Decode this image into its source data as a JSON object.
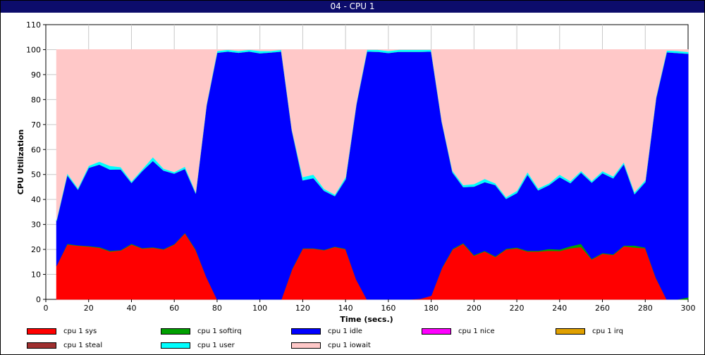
{
  "window": {
    "title": "04 - CPU 1"
  },
  "colors": {
    "sys": "#ff0000",
    "softirq": "#00a000",
    "idle": "#0000ff",
    "nice": "#ff00ff",
    "irq": "#e0a000",
    "steal": "#a03030",
    "user": "#00ffff",
    "iowait": "#ffc8c8"
  },
  "chart_data": {
    "type": "area",
    "stacked": true,
    "xlabel": "Time (secs.)",
    "ylabel": "CPU Utilization",
    "xlim": [
      0,
      300
    ],
    "ylim": [
      0,
      110
    ],
    "xticks": [
      0,
      20,
      40,
      60,
      80,
      100,
      120,
      140,
      160,
      180,
      200,
      220,
      240,
      260,
      280,
      300
    ],
    "yticks": [
      0,
      10,
      20,
      30,
      40,
      50,
      60,
      70,
      80,
      90,
      100,
      110
    ],
    "grid": true,
    "legend_position": "bottom",
    "x": [
      5,
      10,
      15,
      20,
      25,
      30,
      35,
      40,
      45,
      50,
      55,
      60,
      65,
      70,
      75,
      80,
      85,
      90,
      95,
      100,
      105,
      110,
      115,
      120,
      125,
      130,
      135,
      140,
      145,
      150,
      155,
      160,
      165,
      170,
      175,
      180,
      185,
      190,
      195,
      200,
      205,
      210,
      215,
      220,
      225,
      230,
      235,
      240,
      245,
      250,
      255,
      260,
      265,
      270,
      275,
      280,
      285,
      290,
      295,
      300
    ],
    "series": [
      {
        "name": "cpu 1 sys",
        "key": "sys",
        "values": [
          13.5,
          22,
          21.5,
          21.2,
          20.7,
          19.2,
          19.6,
          22,
          20.4,
          20.7,
          20,
          22,
          26.5,
          19.8,
          9,
          0,
          0,
          0,
          0,
          0,
          0,
          0,
          12,
          20.3,
          20.3,
          19.7,
          21,
          20.1,
          8,
          0,
          0,
          0,
          0,
          0,
          0.3,
          1.5,
          12.5,
          20,
          22.3,
          17.5,
          19.2,
          17,
          20,
          20.5,
          19.2,
          19.2,
          19.5,
          19.4,
          20.5,
          21,
          16,
          18.3,
          17.8,
          21.3,
          20.8,
          20.5,
          8.5,
          0,
          0,
          0
        ]
      },
      {
        "name": "cpu 1 softirq",
        "key": "softirq",
        "values": [
          0,
          0.3,
          0.2,
          0.2,
          0.3,
          0.3,
          0.2,
          0.3,
          0.2,
          0.2,
          0.2,
          0.2,
          0.2,
          0.3,
          0,
          0,
          0,
          0,
          0,
          0,
          0,
          0,
          0.2,
          0.2,
          0.2,
          0.2,
          0.2,
          0.2,
          0,
          0,
          0,
          0,
          0,
          0,
          0,
          0,
          0.2,
          0.3,
          0.3,
          0.3,
          0.3,
          0.3,
          0.3,
          0.3,
          0.3,
          0.3,
          0.7,
          0.6,
          0.8,
          1.3,
          0.3,
          0.3,
          0.3,
          0.3,
          0.8,
          0.3,
          0.2,
          0,
          0,
          0.8
        ]
      },
      {
        "name": "cpu 1 idle",
        "key": "idle",
        "values": [
          18,
          27.5,
          22.3,
          31.3,
          33,
          32.5,
          32.3,
          24.4,
          30.8,
          34.6,
          31.4,
          28.2,
          25.6,
          22.4,
          68.5,
          98.8,
          99.3,
          98.8,
          99.3,
          98.6,
          98.9,
          99.3,
          55.3,
          27.2,
          28.1,
          23.6,
          20.2,
          27.8,
          70,
          99.3,
          99.2,
          98.7,
          99.2,
          99.2,
          98.9,
          97.8,
          58.3,
          30.5,
          22.4,
          27.4,
          27.5,
          28.5,
          20,
          21.8,
          30.5,
          24.2,
          25.6,
          29,
          25.3,
          28.5,
          30.5,
          32,
          30.4,
          32.6,
          20.6,
          26.2,
          71.8,
          99,
          98.7,
          97.6
        ]
      },
      {
        "name": "cpu 1 nice",
        "key": "nice",
        "values": [
          0,
          0,
          0,
          0,
          0,
          0,
          0,
          0,
          0,
          0,
          0,
          0,
          0,
          0,
          0,
          0,
          0,
          0,
          0,
          0,
          0,
          0,
          0,
          0,
          0,
          0,
          0,
          0,
          0,
          0,
          0,
          0,
          0,
          0,
          0,
          0,
          0,
          0,
          0,
          0,
          0,
          0,
          0,
          0,
          0,
          0,
          0,
          0,
          0,
          0,
          0,
          0,
          0,
          0,
          0,
          0,
          0,
          0,
          0,
          0
        ]
      },
      {
        "name": "cpu 1 irq",
        "key": "irq",
        "values": [
          0,
          0,
          0,
          0,
          0,
          0,
          0,
          0,
          0,
          0,
          0,
          0,
          0,
          0,
          0,
          0,
          0,
          0,
          0,
          0,
          0,
          0,
          0,
          0,
          0,
          0,
          0,
          0,
          0,
          0,
          0,
          0,
          0,
          0,
          0,
          0,
          0,
          0,
          0,
          0,
          0,
          0,
          0,
          0,
          0,
          0,
          0,
          0,
          0,
          0,
          0,
          0,
          0,
          0,
          0,
          0,
          0,
          0,
          0,
          0
        ]
      },
      {
        "name": "cpu 1 steal",
        "key": "steal",
        "values": [
          0,
          0,
          0,
          0,
          0,
          0,
          0,
          0,
          0,
          0,
          0,
          0,
          0,
          0,
          0,
          0,
          0,
          0,
          0,
          0,
          0,
          0,
          0,
          0,
          0,
          0,
          0,
          0,
          0,
          0,
          0,
          0,
          0,
          0,
          0,
          0,
          0,
          0,
          0,
          0,
          0,
          0,
          0,
          0,
          0,
          0,
          0,
          0,
          0,
          0,
          0,
          0,
          0,
          0,
          0,
          0,
          0,
          0,
          0,
          0
        ]
      },
      {
        "name": "cpu 1 user",
        "key": "user",
        "values": [
          0.5,
          0.7,
          0.6,
          0.8,
          1.2,
          1.5,
          0.9,
          0.6,
          0.7,
          1.5,
          0.8,
          0.6,
          0.9,
          0.5,
          0.5,
          0.7,
          0.7,
          0.7,
          0.7,
          0.9,
          0.6,
          0.7,
          0.5,
          1.3,
          1.4,
          0.8,
          0.6,
          0.9,
          0.5,
          0.7,
          0.8,
          0.8,
          0.8,
          0.8,
          0.8,
          0.7,
          0.5,
          0.7,
          0.8,
          1,
          1.3,
          0.7,
          0.7,
          0.9,
          1,
          0.8,
          0.7,
          1,
          0.8,
          0.7,
          0.7,
          0.8,
          0.8,
          0.8,
          0.8,
          0.8,
          0.5,
          0.7,
          0.8,
          0.7
        ]
      },
      {
        "name": "cpu 1 iowait",
        "key": "iowait",
        "values": [
          68,
          49.5,
          55.4,
          46.5,
          44.8,
          46.5,
          47,
          52.7,
          47.9,
          43,
          47.6,
          49,
          46.8,
          57,
          22,
          0.5,
          0,
          0.5,
          0,
          0.5,
          0.5,
          0,
          32,
          51,
          50,
          55.7,
          58,
          51,
          21.5,
          0,
          0,
          0.5,
          0,
          0,
          0,
          0,
          28.5,
          48.5,
          54.2,
          53.8,
          51.7,
          53.5,
          59,
          56.5,
          49,
          55.5,
          53.5,
          50,
          52.6,
          48.5,
          52.5,
          48.6,
          50.7,
          45,
          57,
          52.2,
          19,
          0.3,
          0.5,
          0.9
        ]
      }
    ]
  }
}
